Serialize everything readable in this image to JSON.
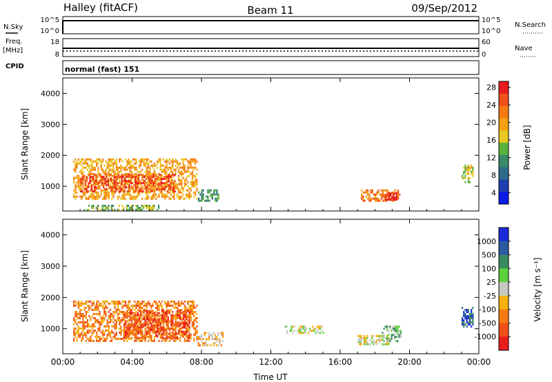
{
  "header": {
    "title": "Halley (fitACF)",
    "beam": "Beam 11",
    "date": "09/Sep/2012"
  },
  "strips": {
    "nsky": {
      "label": "N.Sky",
      "right_label": "N.Search",
      "ticks_left": [
        "10^5",
        "10^0"
      ],
      "ticks_right": [
        "10^5",
        "10^0"
      ]
    },
    "freq": {
      "label_line1": "Freq.",
      "label_line2": "[MHz]",
      "right_label": "Nave",
      "ticks_left": [
        "18",
        "8"
      ],
      "ticks_right": [
        "60",
        "0"
      ]
    },
    "cpid": {
      "label": "CPID",
      "text": "normal (fast) 151"
    }
  },
  "chart_data": [
    {
      "type": "heatmap",
      "name": "power",
      "ylabel": "Slant Range [km]",
      "y_ticks": [
        "1000",
        "2000",
        "3000",
        "4000"
      ],
      "x_ticks": [
        "00:00",
        "04:00",
        "08:00",
        "12:00",
        "16:00",
        "20:00",
        "00:00"
      ],
      "xlim": [
        0,
        24
      ],
      "ylim": [
        200,
        4500
      ],
      "colorbar": {
        "label": "Power [dB]",
        "ticks": [
          "4",
          "8",
          "12",
          "16",
          "20",
          "24",
          "28"
        ],
        "colors": [
          "#0a1ce6",
          "#1f3fb0",
          "#2e6a8a",
          "#3a8a6a",
          "#59b23c",
          "#e8c81e",
          "#f6a014",
          "#f57a12",
          "#f0501a",
          "#e81c1c"
        ]
      },
      "regions": [
        {
          "t0": 0.6,
          "t1": 7.7,
          "r0": 600,
          "r1": 1900,
          "level": 6
        },
        {
          "t0": 1.0,
          "t1": 6.5,
          "r0": 800,
          "r1": 1400,
          "level": 8
        },
        {
          "t0": 7.8,
          "t1": 9.0,
          "r0": 500,
          "r1": 900,
          "level": 3
        },
        {
          "t0": 17.2,
          "t1": 19.4,
          "r0": 500,
          "r1": 900,
          "level": 7
        },
        {
          "t0": 18.6,
          "t1": 19.3,
          "r0": 550,
          "r1": 800,
          "level": 9
        },
        {
          "t0": 23.0,
          "t1": 23.7,
          "r0": 1100,
          "r1": 1700,
          "level": 5
        },
        {
          "t0": 1.2,
          "t1": 5.5,
          "r0": 250,
          "r1": 400,
          "level": 4
        }
      ]
    },
    {
      "type": "heatmap",
      "name": "velocity",
      "ylabel": "Slant Range [km]",
      "y_ticks": [
        "1000",
        "2000",
        "3000",
        "4000"
      ],
      "x_ticks": [
        "00:00",
        "04:00",
        "08:00",
        "12:00",
        "16:00",
        "20:00",
        "00:00"
      ],
      "xlabel": "Time UT",
      "xlim": [
        0,
        24
      ],
      "ylim": [
        200,
        4500
      ],
      "colorbar": {
        "label": "Velocity [m s⁻¹]",
        "ticks": [
          "1000",
          "500",
          "100",
          "25",
          "-25",
          "-100",
          "-500",
          "-1000"
        ],
        "colors": [
          "#1a2ad8",
          "#2a5aa0",
          "#3a8a60",
          "#5ed040",
          "#c8c8c0",
          "#f6b010",
          "#f67a12",
          "#f05018",
          "#e81c1c"
        ]
      },
      "regions": [
        {
          "t0": 0.6,
          "t1": 7.7,
          "r0": 600,
          "r1": 1900,
          "level": 6
        },
        {
          "t0": 3.5,
          "t1": 7.3,
          "r0": 700,
          "r1": 1600,
          "level": 7
        },
        {
          "t0": 7.7,
          "t1": 9.2,
          "r0": 450,
          "r1": 900,
          "level": 5
        },
        {
          "t0": 12.8,
          "t1": 15.0,
          "r0": 850,
          "r1": 1100,
          "level": 4
        },
        {
          "t0": 17.0,
          "t1": 18.8,
          "r0": 500,
          "r1": 800,
          "level": 4
        },
        {
          "t0": 18.4,
          "t1": 19.5,
          "r0": 600,
          "r1": 1100,
          "level": 3
        },
        {
          "t0": 23.0,
          "t1": 23.7,
          "r0": 1100,
          "r1": 1700,
          "level": 1
        }
      ]
    }
  ]
}
